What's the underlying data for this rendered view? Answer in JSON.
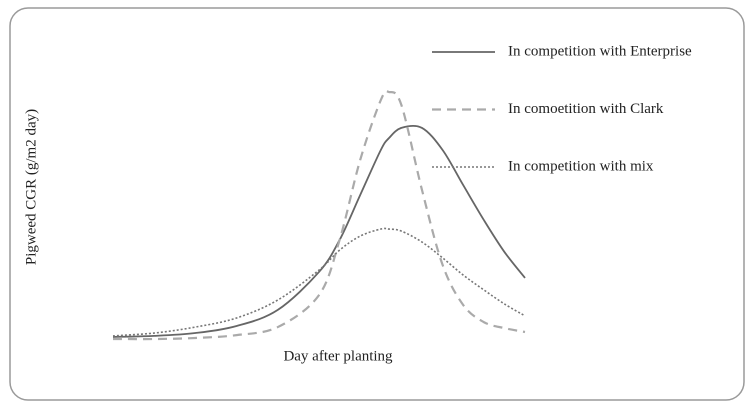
{
  "chart_data": {
    "type": "line",
    "xlabel": "Day after planting",
    "ylabel": "Pigweed CGR (g/m2 day)",
    "x": [
      0,
      10,
      20,
      30,
      40,
      50,
      55,
      60,
      65,
      67,
      70,
      75,
      80,
      85,
      90,
      95,
      100
    ],
    "xlim": [
      0,
      100
    ],
    "ylim": [
      0,
      100
    ],
    "legend": "upper right",
    "series": [
      {
        "name": "In competition with Enterprise",
        "color": "#666666",
        "style": "solid",
        "values": [
          3.1,
          3.5,
          4.6,
          7.3,
          13.5,
          28.1,
          40.4,
          57.7,
          75,
          79.6,
          83.5,
          83.5,
          75,
          61.5,
          48.1,
          35.8,
          25.8
        ]
      },
      {
        "name": "In comoetition with Clark",
        "color": "#aaaaaa",
        "style": "dashed",
        "values": [
          2.3,
          2.3,
          2.7,
          3.8,
          6.9,
          19.2,
          40.4,
          71.2,
          94.2,
          97.3,
          92.3,
          59.6,
          30.8,
          15.4,
          8.8,
          6.5,
          5.0
        ]
      },
      {
        "name": "In competition with mix",
        "color": "#777777",
        "style": "dotted",
        "values": [
          3.5,
          4.6,
          6.9,
          10.4,
          17.3,
          28.8,
          36.5,
          41.9,
          44.6,
          44.6,
          43.8,
          39.6,
          33.5,
          26.9,
          21.2,
          15.8,
          11.2
        ]
      }
    ]
  }
}
